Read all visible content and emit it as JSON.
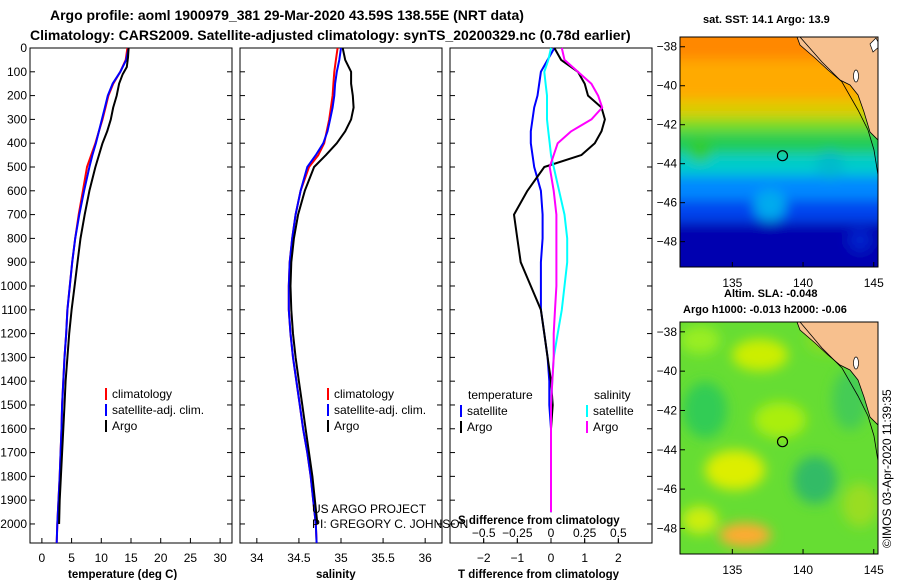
{
  "figure": {
    "title_line1": "Argo profile: aoml 1900979_381 29-Mar-2020 43.59S 138.55E (NRT data)",
    "title_line2": "Climatology: CARS2009. Satellite-adjusted climatology: synTS_20200329.nc (0.78d earlier)",
    "footer_credit": "©IMOS 03-Apr-2020 11:39:35",
    "project_line1": "US ARGO PROJECT",
    "project_line2": "PI: GREGORY C. JOHNSON"
  },
  "colors": {
    "argo": "#000000",
    "climatology": "#ff0000",
    "satellite": "#0000ff",
    "salinity_satellite": "#00ffff",
    "salinity_argo": "#ff00ff"
  },
  "chart_data": [
    {
      "id": "temperature",
      "type": "line",
      "xlabel": "temperature (deg C)",
      "xlim": [
        -2,
        32
      ],
      "xticks": [
        0,
        5,
        10,
        15,
        20,
        25,
        30
      ],
      "ylim": [
        2080,
        0
      ],
      "yticks": [
        0,
        100,
        200,
        300,
        400,
        500,
        600,
        700,
        800,
        900,
        1000,
        1100,
        1200,
        1300,
        1400,
        1500,
        1600,
        1700,
        1800,
        1900,
        2000
      ],
      "legend": [
        "climatology",
        "satellite-adj. clim.",
        "Argo"
      ],
      "series": [
        {
          "name": "climatology",
          "color": "#ff0000",
          "x": [
            14.4,
            14.1,
            13.2,
            12.0,
            11.2,
            10.7,
            10.2,
            9.6,
            9.0,
            8.3,
            7.6,
            6.9,
            6.2,
            5.6,
            5.1,
            4.7,
            4.3,
            4.1,
            3.8,
            3.6,
            3.4,
            3.3,
            3.15,
            3.0,
            2.9,
            2.8,
            2.7,
            2.6,
            2.55,
            2.5
          ],
          "y": [
            0,
            50,
            100,
            150,
            200,
            250,
            300,
            350,
            400,
            450,
            500,
            600,
            700,
            800,
            900,
            1000,
            1100,
            1200,
            1300,
            1400,
            1500,
            1600,
            1700,
            1800,
            1850,
            1900,
            1950,
            2000,
            2040,
            2080
          ]
        },
        {
          "name": "satellite-adj. clim.",
          "color": "#0000ff",
          "x": [
            14.6,
            14.2,
            13.2,
            11.9,
            11.1,
            10.6,
            10.1,
            9.6,
            9.1,
            8.5,
            8.0,
            7.1,
            6.3,
            5.6,
            5.1,
            4.7,
            4.3,
            4.1,
            3.8,
            3.6,
            3.4,
            3.3,
            3.15,
            3.0,
            2.9,
            2.8,
            2.7,
            2.6,
            2.55,
            2.5
          ],
          "y": [
            0,
            50,
            100,
            150,
            200,
            250,
            300,
            350,
            400,
            450,
            500,
            600,
            700,
            800,
            900,
            1000,
            1100,
            1200,
            1300,
            1400,
            1500,
            1600,
            1700,
            1800,
            1850,
            1900,
            1950,
            2000,
            2040,
            2080
          ]
        },
        {
          "name": "Argo",
          "color": "#000000",
          "x": [
            14.6,
            14.5,
            14.3,
            13.6,
            13.0,
            12.6,
            12.0,
            11.6,
            11.0,
            10.2,
            9.0,
            8.0,
            7.2,
            6.5,
            6.0,
            5.5,
            5.0,
            4.6,
            4.3,
            4.0,
            3.8,
            3.6,
            3.4,
            3.2,
            3.1,
            3.0,
            2.95,
            2.9
          ],
          "y": [
            0,
            40,
            80,
            110,
            150,
            200,
            250,
            300,
            350,
            400,
            500,
            600,
            700,
            800,
            900,
            1000,
            1100,
            1200,
            1300,
            1400,
            1500,
            1600,
            1700,
            1800,
            1850,
            1900,
            1950,
            2000
          ]
        }
      ]
    },
    {
      "id": "salinity",
      "type": "line",
      "xlabel": "salinity",
      "xlim": [
        33.8,
        36.2
      ],
      "xticks": [
        34,
        34.5,
        35,
        35.5,
        36
      ],
      "ylim": [
        2080,
        0
      ],
      "legend": [
        "climatology",
        "satellite-adj. clim.",
        "Argo"
      ],
      "series": [
        {
          "name": "climatology",
          "color": "#ff0000",
          "x": [
            34.96,
            34.94,
            34.92,
            34.91,
            34.9,
            34.88,
            34.86,
            34.83,
            34.8,
            34.73,
            34.62,
            34.52,
            34.46,
            34.42,
            34.39,
            34.38,
            34.38,
            34.4,
            34.43,
            34.47,
            34.51,
            34.55,
            34.6,
            34.64,
            34.67,
            34.7,
            34.71
          ],
          "y": [
            0,
            50,
            100,
            150,
            200,
            250,
            300,
            350,
            400,
            450,
            500,
            600,
            700,
            800,
            900,
            1000,
            1100,
            1200,
            1300,
            1400,
            1500,
            1600,
            1700,
            1800,
            1900,
            2000,
            2080
          ]
        },
        {
          "name": "satellite-adj. clim.",
          "color": "#0000ff",
          "x": [
            35.0,
            34.98,
            34.95,
            34.93,
            34.92,
            34.9,
            34.87,
            34.84,
            34.79,
            34.7,
            34.6,
            34.52,
            34.46,
            34.42,
            34.39,
            34.38,
            34.38,
            34.4,
            34.43,
            34.47,
            34.51,
            34.55,
            34.6,
            34.64,
            34.67,
            34.7,
            34.71
          ],
          "y": [
            0,
            50,
            100,
            150,
            200,
            250,
            300,
            350,
            400,
            450,
            500,
            600,
            700,
            800,
            900,
            1000,
            1100,
            1200,
            1300,
            1400,
            1500,
            1600,
            1700,
            1800,
            1900,
            2000,
            2080
          ]
        },
        {
          "name": "Argo",
          "color": "#000000",
          "x": [
            35.02,
            35.05,
            35.12,
            35.12,
            35.14,
            35.15,
            35.12,
            35.05,
            34.95,
            34.82,
            34.68,
            34.57,
            34.49,
            34.44,
            34.41,
            34.4,
            34.41,
            34.43,
            34.46,
            34.5,
            34.54,
            34.58,
            34.62,
            34.66,
            34.69,
            34.72
          ],
          "y": [
            0,
            50,
            100,
            150,
            200,
            250,
            300,
            350,
            400,
            450,
            500,
            600,
            700,
            800,
            900,
            1000,
            1100,
            1200,
            1300,
            1400,
            1500,
            1600,
            1700,
            1800,
            1900,
            2000
          ]
        }
      ]
    },
    {
      "id": "difference",
      "type": "line",
      "xlabel": "T difference from climatology",
      "xlabel2": "S difference from climatology",
      "xlim": [
        -3,
        3
      ],
      "xticks": [
        -2,
        -1,
        0,
        1,
        2
      ],
      "xticks2": [
        -0.5,
        -0.25,
        0,
        0.25,
        0.5
      ],
      "ylim": [
        2080,
        0
      ],
      "legend_titles": [
        "temperature",
        "salinity"
      ],
      "legend": [
        "satellite",
        "Argo",
        "satellite",
        "Argo"
      ],
      "series": [
        {
          "name": "satellite",
          "color": "#0000ff",
          "x": [
            0.1,
            -0.1,
            -0.3,
            -0.35,
            -0.4,
            -0.5,
            -0.55,
            -0.6,
            -0.6,
            -0.55,
            -0.5,
            -0.3,
            -0.25,
            -0.25,
            -0.3,
            -0.3,
            -0.3,
            -0.2,
            -0.1,
            -0.05,
            -0.05,
            0,
            0,
            0,
            0
          ],
          "y": [
            0,
            50,
            100,
            150,
            200,
            250,
            300,
            350,
            400,
            450,
            500,
            600,
            700,
            800,
            900,
            1000,
            1100,
            1200,
            1300,
            1400,
            1500,
            1600,
            1700,
            1800,
            1950
          ]
        },
        {
          "name": "Argo",
          "color": "#000000",
          "x": [
            0.1,
            0.3,
            0.8,
            1.0,
            1.1,
            1.5,
            1.6,
            1.5,
            1.3,
            0.9,
            -0.2,
            -0.7,
            -1.1,
            -1.0,
            -0.9,
            -0.6,
            -0.3,
            -0.2,
            -0.1,
            0,
            0.05,
            0,
            0,
            0,
            0
          ],
          "y": [
            0,
            50,
            100,
            150,
            200,
            250,
            300,
            350,
            400,
            450,
            500,
            600,
            700,
            800,
            900,
            1000,
            1100,
            1200,
            1300,
            1400,
            1500,
            1600,
            1700,
            1800,
            1950
          ]
        },
        {
          "name": "satellite",
          "color": "#00ffff",
          "x": [
            0,
            -0.02,
            -0.05,
            -0.04,
            -0.03,
            -0.03,
            -0.03,
            -0.02,
            -0.01,
            0,
            0.02,
            0.06,
            0.1,
            0.12,
            0.12,
            0.1,
            0.08,
            0.05,
            0.02,
            0.01,
            0,
            0,
            0,
            0,
            0
          ],
          "y": [
            0,
            50,
            100,
            150,
            200,
            250,
            300,
            350,
            400,
            450,
            500,
            600,
            700,
            800,
            900,
            1000,
            1100,
            1200,
            1300,
            1400,
            1500,
            1600,
            1700,
            1800,
            1950
          ]
        },
        {
          "name": "Argo",
          "color": "#ff00ff",
          "x": [
            0.08,
            0.1,
            0.2,
            0.3,
            0.35,
            0.38,
            0.3,
            0.15,
            0.05,
            0.02,
            -0.01,
            0.02,
            0.04,
            0.04,
            0.04,
            0.04,
            0.03,
            0.02,
            0.02,
            0.01,
            0,
            0,
            0,
            0,
            0
          ],
          "y": [
            0,
            50,
            100,
            150,
            200,
            250,
            300,
            350,
            400,
            450,
            500,
            600,
            700,
            800,
            900,
            1000,
            1100,
            1200,
            1300,
            1400,
            1500,
            1600,
            1700,
            1800,
            1950
          ]
        }
      ]
    },
    {
      "id": "sst_map",
      "type": "heatmap",
      "title": "sat. SST: 14.1 Argo: 13.9",
      "xlim": [
        131.3,
        145.3
      ],
      "ylim": [
        -49.3,
        -37.5
      ],
      "xticks": [
        135,
        140,
        145
      ],
      "yticks": [
        -38,
        -40,
        -42,
        -44,
        -46,
        -48
      ],
      "profile_location": [
        138.55,
        -43.59
      ]
    },
    {
      "id": "sla_map",
      "type": "heatmap",
      "title_line1": "Altim. SLA: -0.048",
      "title_line2": "Argo h1000: -0.013 h2000: -0.06",
      "xlim": [
        131.3,
        145.3
      ],
      "ylim": [
        -49.3,
        -37.5
      ],
      "xticks": [
        135,
        140,
        145
      ],
      "yticks": [
        -38,
        -40,
        -42,
        -44,
        -46,
        -48
      ],
      "profile_location": [
        138.55,
        -43.59
      ]
    }
  ]
}
